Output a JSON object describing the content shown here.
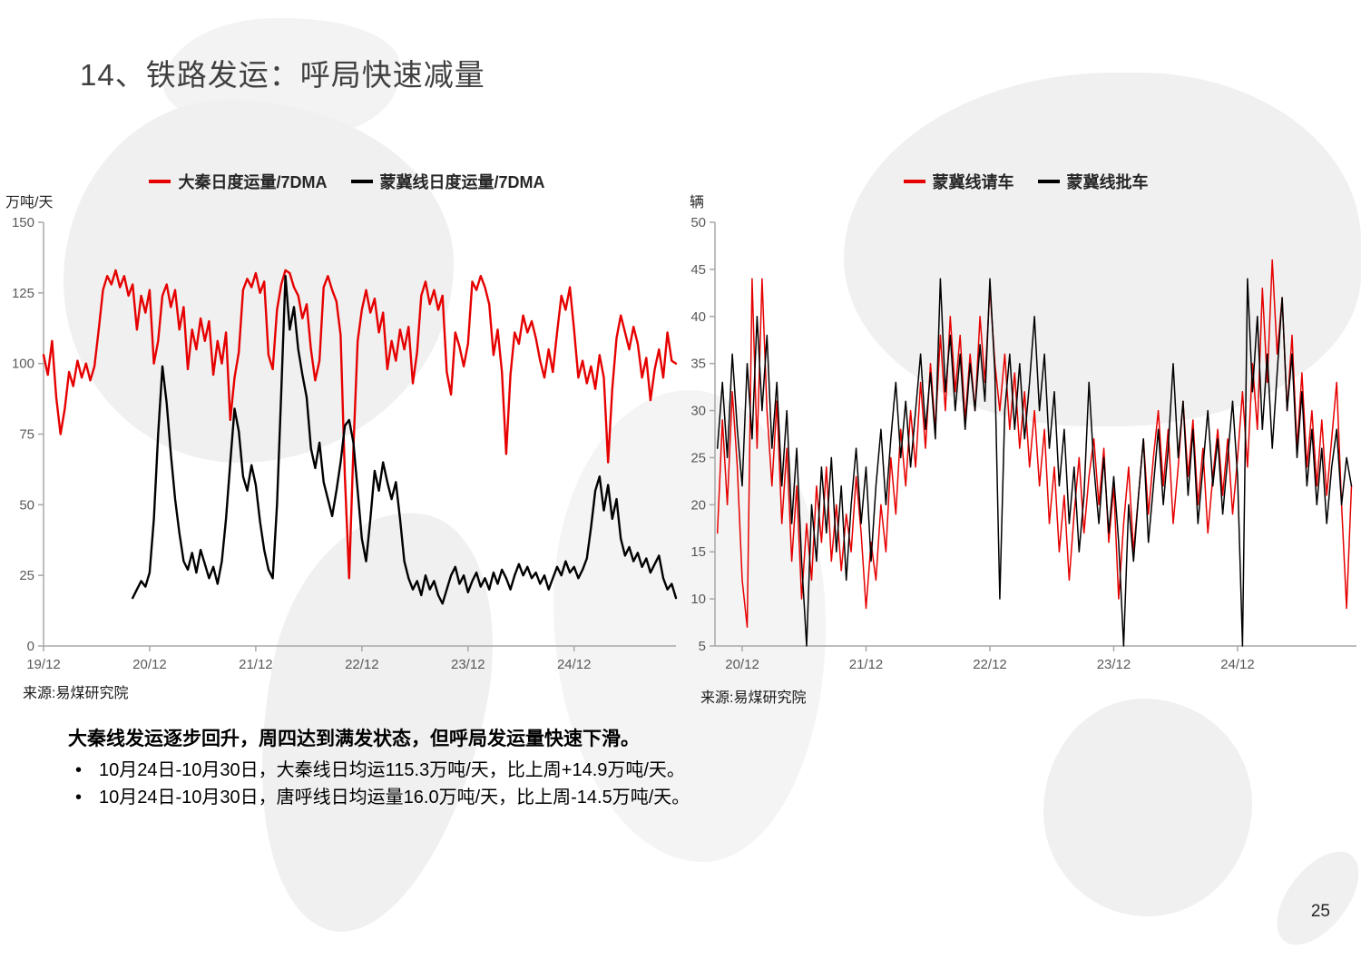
{
  "title": "14、铁路发运：呼局快速减量",
  "page_number": "25",
  "summary": {
    "heading": "大秦线发运逐步回升，周四达到满发状态，但呼局发运量快速下滑。",
    "bullets": [
      "10月24日-10月30日，大秦线日均运115.3万吨/天，比上周+14.9万吨/天。",
      "10月24日-10月30日，唐呼线日均运量16.0万吨/天，比上周-14.5万吨/天。"
    ]
  },
  "chart_data": [
    {
      "type": "line",
      "ylabel": "万吨/天",
      "source": "来源:易煤研究院",
      "ylim": [
        0,
        150
      ],
      "yticks": [
        0,
        25,
        50,
        75,
        100,
        125,
        150
      ],
      "xlim": [
        0,
        5.96
      ],
      "xticks": [
        {
          "pos": 0,
          "label": "19/12"
        },
        {
          "pos": 1,
          "label": "20/12"
        },
        {
          "pos": 2,
          "label": "21/12"
        },
        {
          "pos": 3,
          "label": "22/12"
        },
        {
          "pos": 4,
          "label": "23/12"
        },
        {
          "pos": 5,
          "label": "24/12"
        }
      ],
      "grid": false,
      "legend_position": "top",
      "series": [
        {
          "name": "大秦日度运量/7DMA",
          "color": "#e60000",
          "x0": 0,
          "dx": 0.04,
          "values": [
            103,
            96,
            108,
            88,
            75,
            84,
            97,
            92,
            101,
            95,
            100,
            94,
            99,
            112,
            126,
            131,
            128,
            133,
            127,
            131,
            124,
            128,
            112,
            124,
            118,
            126,
            100,
            108,
            124,
            128,
            120,
            126,
            112,
            120,
            98,
            112,
            105,
            116,
            108,
            115,
            96,
            108,
            100,
            111,
            80,
            95,
            104,
            126,
            130,
            127,
            132,
            125,
            129,
            103,
            98,
            119,
            128,
            133,
            132,
            127,
            124,
            116,
            121,
            105,
            94,
            101,
            127,
            131,
            126,
            122,
            110,
            60,
            24,
            70,
            108,
            119,
            126,
            118,
            123,
            111,
            118,
            98,
            108,
            101,
            112,
            105,
            113,
            93,
            104,
            124,
            129,
            121,
            126,
            119,
            124,
            97,
            89,
            111,
            106,
            99,
            107,
            129,
            126,
            131,
            127,
            121,
            103,
            112,
            97,
            68,
            96,
            111,
            107,
            117,
            111,
            115,
            109,
            101,
            95,
            105,
            97,
            111,
            124,
            119,
            127,
            112,
            95,
            101,
            93,
            99,
            91,
            103,
            95,
            65,
            91,
            109,
            117,
            111,
            105,
            113,
            107,
            95,
            102,
            87,
            98,
            105,
            95,
            111,
            101,
            100
          ]
        },
        {
          "name": "蒙冀线日度运量/7DMA",
          "color": "#000000",
          "x0": 0.84,
          "dx": 0.04,
          "values": [
            17,
            20,
            23,
            21,
            26,
            45,
            75,
            99,
            86,
            68,
            52,
            40,
            30,
            27,
            33,
            26,
            34,
            29,
            24,
            28,
            22,
            30,
            45,
            65,
            84,
            76,
            60,
            55,
            64,
            57,
            44,
            34,
            27,
            24,
            50,
            90,
            131,
            112,
            120,
            105,
            96,
            88,
            70,
            63,
            72,
            58,
            52,
            46,
            55,
            65,
            78,
            80,
            72,
            55,
            38,
            30,
            45,
            62,
            55,
            65,
            58,
            52,
            58,
            45,
            30,
            24,
            20,
            23,
            18,
            25,
            20,
            23,
            18,
            15,
            20,
            25,
            28,
            22,
            25,
            19,
            23,
            26,
            21,
            24,
            20,
            26,
            22,
            27,
            24,
            20,
            25,
            29,
            25,
            28,
            24,
            26,
            22,
            25,
            20,
            24,
            28,
            25,
            30,
            26,
            28,
            24,
            27,
            31,
            42,
            55,
            60,
            48,
            57,
            45,
            52,
            38,
            32,
            35,
            30,
            33,
            28,
            31,
            26,
            29,
            32,
            24,
            20,
            22,
            17
          ]
        }
      ]
    },
    {
      "type": "line",
      "ylabel": "辆",
      "source": "来源:易煤研究院",
      "ylim": [
        5,
        50
      ],
      "yticks": [
        5,
        10,
        15,
        20,
        25,
        30,
        35,
        40,
        45,
        50
      ],
      "xlim": [
        0.78,
        5.96
      ],
      "xticks": [
        {
          "pos": 1,
          "label": "20/12"
        },
        {
          "pos": 2,
          "label": "21/12"
        },
        {
          "pos": 3,
          "label": "22/12"
        },
        {
          "pos": 4,
          "label": "23/12"
        },
        {
          "pos": 5,
          "label": "24/12"
        }
      ],
      "grid": false,
      "legend_position": "top",
      "series": [
        {
          "name": "蒙冀线请车",
          "color": "#e60000",
          "x0": 0.8,
          "dx": 0.04,
          "values": [
            17,
            29,
            20,
            32,
            24,
            12,
            7,
            44,
            26,
            44,
            30,
            22,
            31,
            18,
            26,
            14,
            22,
            10,
            18,
            12,
            22,
            16,
            24,
            14,
            20,
            13,
            19,
            15,
            23,
            17,
            9,
            16,
            12,
            20,
            15,
            25,
            19,
            28,
            22,
            30,
            24,
            33,
            26,
            35,
            28,
            38,
            30,
            40,
            32,
            38,
            29,
            36,
            30,
            40,
            33,
            43,
            35,
            30,
            36,
            28,
            34,
            26,
            32,
            24,
            30,
            22,
            28,
            18,
            24,
            15,
            21,
            12,
            19,
            25,
            17,
            23,
            27,
            20,
            26,
            16,
            22,
            10,
            18,
            24,
            15,
            21,
            27,
            19,
            25,
            30,
            22,
            28,
            18,
            24,
            31,
            23,
            29,
            20,
            26,
            17,
            23,
            28,
            21,
            27,
            19,
            25,
            32,
            24,
            35,
            28,
            43,
            33,
            46,
            36,
            42,
            30,
            38,
            26,
            34,
            24,
            30,
            22,
            29,
            21,
            27,
            33,
            20,
            9,
            22
          ]
        },
        {
          "name": "蒙冀线批车",
          "color": "#000000",
          "x0": 0.8,
          "dx": 0.04,
          "values": [
            26,
            33,
            25,
            36,
            28,
            22,
            35,
            27,
            40,
            30,
            38,
            26,
            33,
            22,
            30,
            18,
            26,
            14,
            5,
            20,
            14,
            24,
            17,
            25,
            15,
            22,
            12,
            20,
            26,
            18,
            24,
            14,
            22,
            28,
            20,
            27,
            33,
            25,
            31,
            24,
            30,
            36,
            28,
            34,
            27,
            44,
            32,
            38,
            30,
            36,
            28,
            35,
            30,
            37,
            31,
            44,
            34,
            10,
            30,
            36,
            28,
            35,
            27,
            33,
            40,
            30,
            36,
            26,
            32,
            22,
            28,
            18,
            24,
            15,
            21,
            33,
            24,
            18,
            25,
            17,
            23,
            16,
            5,
            20,
            14,
            21,
            27,
            16,
            22,
            28,
            20,
            26,
            35,
            25,
            31,
            21,
            28,
            18,
            24,
            30,
            22,
            27,
            19,
            25,
            31,
            23,
            5,
            44,
            32,
            40,
            28,
            36,
            26,
            34,
            42,
            30,
            36,
            25,
            32,
            22,
            28,
            20,
            26,
            18,
            24,
            28,
            20,
            25,
            22
          ]
        }
      ]
    }
  ]
}
